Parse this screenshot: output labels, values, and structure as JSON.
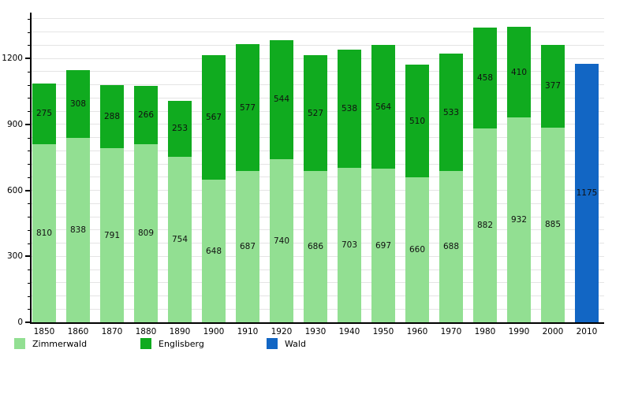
{
  "chart_data": {
    "type": "bar",
    "stacked": true,
    "title": "",
    "xlabel": "",
    "ylabel": "",
    "categories": [
      "1850",
      "1860",
      "1870",
      "1880",
      "1890",
      "1900",
      "1910",
      "1920",
      "1930",
      "1940",
      "1950",
      "1960",
      "1970",
      "1980",
      "1990",
      "2000",
      "2010"
    ],
    "series": [
      {
        "name": "Zimmerwald",
        "color": "#92df92",
        "values": [
          810,
          838,
          791,
          809,
          754,
          648,
          687,
          740,
          686,
          703,
          697,
          660,
          688,
          882,
          932,
          885,
          null
        ]
      },
      {
        "name": "Englisberg",
        "color": "#10ab1f",
        "values": [
          275,
          308,
          288,
          266,
          253,
          567,
          577,
          544,
          527,
          538,
          564,
          510,
          533,
          458,
          410,
          377,
          null
        ]
      },
      {
        "name": "Wald",
        "color": "#1266c4",
        "values": [
          null,
          null,
          null,
          null,
          null,
          null,
          null,
          null,
          null,
          null,
          null,
          null,
          null,
          null,
          null,
          null,
          1175
        ]
      }
    ],
    "ylim": [
      0,
      1400
    ],
    "yticks": [
      0,
      300,
      600,
      900,
      1200
    ],
    "minor_grid_step": 60,
    "grid": true,
    "bar_value_labels": true,
    "legend_position": "bottom"
  }
}
